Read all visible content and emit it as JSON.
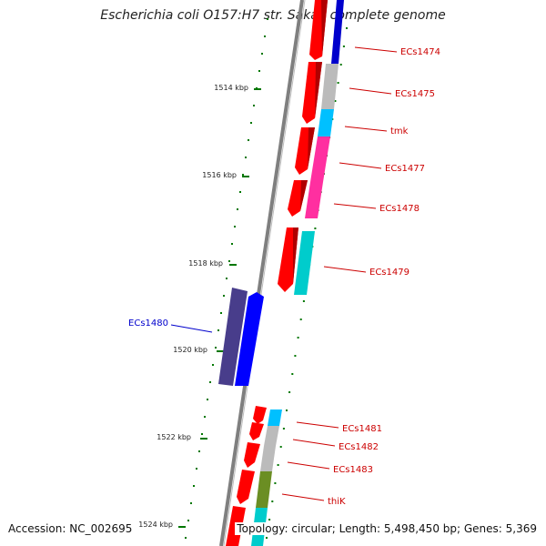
{
  "title": "Escherichia coli O157:H7 str. Sakai, complete genome",
  "footer": {
    "accession": "Accession: NC_002695",
    "summary": "Topology: circular; Length: 5,498,450 bp; Genes: 5,369"
  },
  "ticks": [
    {
      "label": "1514 kbp"
    },
    {
      "label": "1516 kbp"
    },
    {
      "label": "1518 kbp"
    },
    {
      "label": "1520 kbp"
    },
    {
      "label": "1522 kbp"
    },
    {
      "label": "1524 kbp"
    }
  ],
  "genes": [
    {
      "name": "ECs1474",
      "strand": "minus",
      "color": "#cc0000"
    },
    {
      "name": "ECs1475",
      "strand": "minus",
      "color": "#cc0000"
    },
    {
      "name": "tmk",
      "strand": "minus",
      "color": "#cc0000"
    },
    {
      "name": "ECs1477",
      "strand": "minus",
      "color": "#cc0000"
    },
    {
      "name": "ECs1478",
      "strand": "minus",
      "color": "#cc0000"
    },
    {
      "name": "ECs1479",
      "strand": "minus",
      "color": "#cc0000"
    },
    {
      "name": "ECs1480",
      "strand": "plus",
      "color": "#0000cc"
    },
    {
      "name": "ECs1481",
      "strand": "minus",
      "color": "#cc0000"
    },
    {
      "name": "ECs1482",
      "strand": "minus",
      "color": "#cc0000"
    },
    {
      "name": "ECs1483",
      "strand": "minus",
      "color": "#cc0000"
    },
    {
      "name": "thiK",
      "strand": "minus",
      "color": "#cc0000"
    }
  ],
  "colors": {
    "minus_strand": "#ff0000",
    "plus_strand": "#0000ff",
    "backbone": "#808080",
    "gc_skew": "#007700",
    "cog_gray": "#bbbbbb",
    "cog_blue": "#0000cc",
    "cog_cyan": "#00c0ff",
    "cog_magenta": "#ff2fa0",
    "cog_teal": "#00cccc",
    "cog_purple": "#483d8b",
    "cog_olive": "#6b8e23"
  }
}
